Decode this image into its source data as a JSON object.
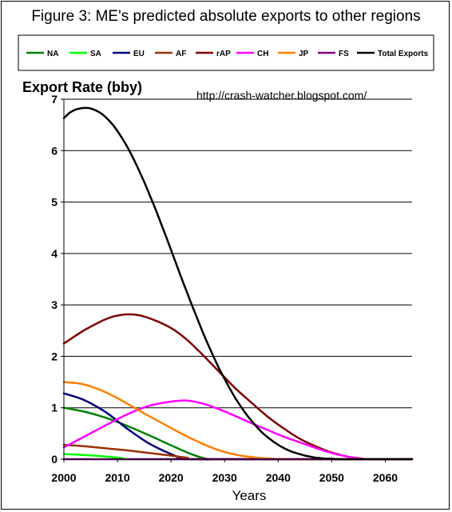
{
  "chart_data": {
    "type": "line",
    "title": "Figure 3: ME's predicted absolute exports to other regions",
    "ylabel": "Export Rate (bby)",
    "xlabel": "Years",
    "annotation": "http://crash-watcher.blogspot.com/",
    "xlim": [
      2000,
      2065
    ],
    "ylim": [
      0,
      7
    ],
    "xticks": [
      2000,
      2010,
      2020,
      2030,
      2040,
      2050,
      2060
    ],
    "yticks": [
      0,
      1,
      2,
      3,
      4,
      5,
      6,
      7
    ],
    "grid": "horizontal",
    "legend_position": "top",
    "series": [
      {
        "name": "NA",
        "color": "#008000",
        "x": [
          2000,
          2004,
          2008,
          2012,
          2016,
          2020,
          2024,
          2027,
          2030,
          2065
        ],
        "y": [
          1.0,
          0.92,
          0.8,
          0.64,
          0.46,
          0.27,
          0.09,
          0.0,
          0.0,
          0.0
        ]
      },
      {
        "name": "SA",
        "color": "#00ff00",
        "x": [
          2000,
          2004,
          2008,
          2011,
          2014,
          2065
        ],
        "y": [
          0.1,
          0.08,
          0.05,
          0.02,
          0.0,
          0.0
        ]
      },
      {
        "name": "EU",
        "color": "#000080",
        "x": [
          2000,
          2004,
          2008,
          2012,
          2016,
          2020,
          2022,
          2025,
          2065
        ],
        "y": [
          1.28,
          1.14,
          0.9,
          0.58,
          0.3,
          0.1,
          0.03,
          0.0,
          0.0
        ]
      },
      {
        "name": "AF",
        "color": "#993300",
        "x": [
          2000,
          2004,
          2008,
          2012,
          2016,
          2020,
          2023,
          2026,
          2065
        ],
        "y": [
          0.28,
          0.25,
          0.21,
          0.17,
          0.12,
          0.07,
          0.03,
          0.0,
          0.0
        ]
      },
      {
        "name": "rAP",
        "color": "#800000",
        "x": [
          2000,
          2004,
          2008,
          2011,
          2014,
          2017,
          2020,
          2023,
          2026,
          2029,
          2032,
          2035,
          2038,
          2041,
          2044,
          2047,
          2050,
          2053,
          2055,
          2057,
          2065
        ],
        "y": [
          2.25,
          2.52,
          2.73,
          2.81,
          2.8,
          2.7,
          2.55,
          2.32,
          2.02,
          1.7,
          1.38,
          1.1,
          0.83,
          0.6,
          0.4,
          0.25,
          0.13,
          0.05,
          0.02,
          0.0,
          0.0
        ]
      },
      {
        "name": "CH",
        "color": "#ff00ff",
        "x": [
          2000,
          2004,
          2008,
          2012,
          2016,
          2020,
          2023,
          2026,
          2029,
          2032,
          2035,
          2038,
          2041,
          2044,
          2047,
          2050,
          2053,
          2055,
          2056,
          2065
        ],
        "y": [
          0.23,
          0.45,
          0.67,
          0.88,
          1.04,
          1.12,
          1.14,
          1.08,
          0.97,
          0.84,
          0.7,
          0.57,
          0.44,
          0.33,
          0.22,
          0.12,
          0.05,
          0.02,
          0.0,
          0.0
        ]
      },
      {
        "name": "JP",
        "color": "#ff8000",
        "x": [
          2000,
          2003,
          2006,
          2009,
          2012,
          2015,
          2018,
          2021,
          2024,
          2027,
          2030,
          2033,
          2036,
          2039,
          2041,
          2065
        ],
        "y": [
          1.5,
          1.47,
          1.38,
          1.24,
          1.07,
          0.89,
          0.72,
          0.55,
          0.39,
          0.25,
          0.14,
          0.07,
          0.03,
          0.01,
          0.0,
          0.0
        ]
      },
      {
        "name": "FS",
        "color": "#800080",
        "x": [
          2000,
          2065
        ],
        "y": [
          0.0,
          0.0
        ]
      },
      {
        "name": "Total Exports",
        "color": "#000000",
        "x": [
          2000,
          2001,
          2002,
          2003,
          2004,
          2005,
          2006,
          2007,
          2008,
          2009,
          2010,
          2011,
          2012,
          2013,
          2014,
          2015,
          2016,
          2017,
          2018,
          2019,
          2020,
          2021,
          2022,
          2023,
          2024,
          2025,
          2026,
          2027,
          2028,
          2029,
          2030,
          2031,
          2032,
          2033,
          2034,
          2035,
          2036,
          2037,
          2038,
          2039,
          2040,
          2041,
          2042,
          2043,
          2044,
          2045,
          2046,
          2047,
          2048,
          2049,
          2050,
          2051,
          2052,
          2053,
          2054,
          2055,
          2056,
          2065
        ],
        "y": [
          6.63,
          6.73,
          6.79,
          6.82,
          6.83,
          6.82,
          6.78,
          6.72,
          6.63,
          6.52,
          6.38,
          6.22,
          6.04,
          5.84,
          5.62,
          5.39,
          5.14,
          4.89,
          4.62,
          4.35,
          4.07,
          3.79,
          3.51,
          3.24,
          2.97,
          2.71,
          2.45,
          2.21,
          1.98,
          1.76,
          1.56,
          1.37,
          1.19,
          1.03,
          0.88,
          0.75,
          0.63,
          0.52,
          0.43,
          0.35,
          0.28,
          0.22,
          0.17,
          0.13,
          0.1,
          0.07,
          0.05,
          0.03,
          0.02,
          0.01,
          0.01,
          0.0,
          0.0,
          0.0,
          0.0,
          0.0,
          0.0,
          0.0
        ]
      }
    ]
  }
}
